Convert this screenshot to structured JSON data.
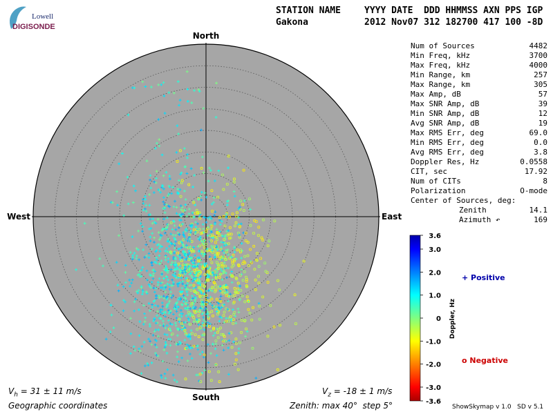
{
  "logo": {
    "line1": "Lowell",
    "line2": "DIGISONDE"
  },
  "header": {
    "row1_left": "STATION NAME",
    "row1_right": "YYYY DATE  DDD HHMMSS AXN PPS IGP",
    "row2_left": "Gakona",
    "row2_right": "2012 Nov07 312 182700 417 100 -8D"
  },
  "stats": [
    {
      "label": "Num of Sources",
      "value": "4482"
    },
    {
      "label": "Min Freq, kHz",
      "value": "3700"
    },
    {
      "label": "Max Freq, kHz",
      "value": "4000"
    },
    {
      "label": "Min Range, km",
      "value": "257"
    },
    {
      "label": "Max Range, km",
      "value": "305"
    },
    {
      "label": "Max Amp, dB",
      "value": "57"
    },
    {
      "label": "Max SNR Amp, dB",
      "value": "39"
    },
    {
      "label": "Min SNR Amp, dB",
      "value": "12"
    },
    {
      "label": "Avg SNR Amp, dB",
      "value": "19"
    },
    {
      "label": "Max RMS Err, deg",
      "value": "69.0"
    },
    {
      "label": "Min RMS Err, deg",
      "value": "0.0"
    },
    {
      "label": "Avg RMS Err, deg",
      "value": "3.8"
    },
    {
      "label": "Doppler Res, Hz",
      "value": "0.0558"
    },
    {
      "label": "CIT, sec",
      "value": "17.92"
    },
    {
      "label": "Num of CITs",
      "value": "8"
    },
    {
      "label": "Polarization",
      "value": "O-mode"
    },
    {
      "label": "Center of Sources, deg:",
      "value": ""
    },
    {
      "label": "Zenith",
      "value": "14.1",
      "indent": true
    },
    {
      "label": "Azimuth ↶",
      "value": "169",
      "indent": true
    }
  ],
  "legend": {
    "positive": "+ Positive",
    "negative": "o Negative"
  },
  "footer": {
    "vh": "V",
    "vh_sub": "h",
    "vh_value": " = 31 ± 11 m/s",
    "vz": "V",
    "vz_sub": "z",
    "vz_value": " = -18 ± 1 m/s",
    "coords": "Geographic coordinates",
    "zenith": "Zenith: max 40°  step 5°",
    "version": "ShowSkymap v 1.0   SD v 5.1"
  },
  "chart_data": {
    "type": "scatter",
    "projection": "polar skymap",
    "directions": {
      "north": "North",
      "south": "South",
      "east": "East",
      "west": "West"
    },
    "zenith_max_deg": 40,
    "zenith_step_deg": 5,
    "colorbar": {
      "label": "Doppler, Hz",
      "range": [
        -3.6,
        3.6
      ],
      "ticks": [
        "3.6",
        "3.0",
        "2.0",
        "1.0",
        "0",
        "-1.0",
        "-2.0",
        "-3.0",
        "-3.6"
      ],
      "tick_values": [
        3.6,
        3.0,
        2.0,
        1.0,
        0,
        -1.0,
        -2.0,
        -3.0,
        -3.6
      ],
      "colors": [
        "#0000aa",
        "#0000ff",
        "#0080ff",
        "#00ffff",
        "#80ff80",
        "#ffff00",
        "#ff8000",
        "#ff0000",
        "#aa0000"
      ]
    },
    "background_color": "#a6a6a6",
    "source_count": 4482,
    "center_of_sources": {
      "zenith_deg": 14.1,
      "azimuth_deg": 169
    },
    "marker_positive": "+",
    "marker_negative": "o",
    "cluster": {
      "mean_offset_west_east_deg": -3,
      "mean_offset_north_south_deg": -14,
      "spread_deg": 9
    }
  }
}
